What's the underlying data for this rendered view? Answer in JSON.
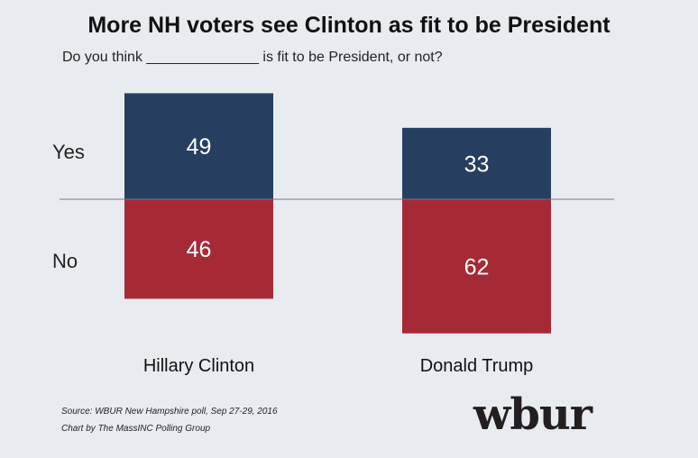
{
  "title": "More NH voters see Clinton as fit to be President",
  "subtitle": "Do you think ______________ is fit to be President, or not?",
  "chart_data": {
    "type": "bar",
    "stacked_diverging": true,
    "categories": [
      "Hillary Clinton",
      "Donald Trump"
    ],
    "series": [
      {
        "name": "Yes",
        "values": [
          49,
          33
        ],
        "color": "#263f61",
        "direction": "up"
      },
      {
        "name": "No",
        "values": [
          46,
          62
        ],
        "color": "#a52a36",
        "direction": "down"
      }
    ],
    "row_labels": [
      "Yes",
      "No"
    ],
    "baseline_color": "#777777"
  },
  "source": {
    "line1": "Source: WBUR New Hampshire poll, Sep 27-29, 2016",
    "line2": "Chart by The MassINC Polling Group"
  },
  "logo": "wbur"
}
